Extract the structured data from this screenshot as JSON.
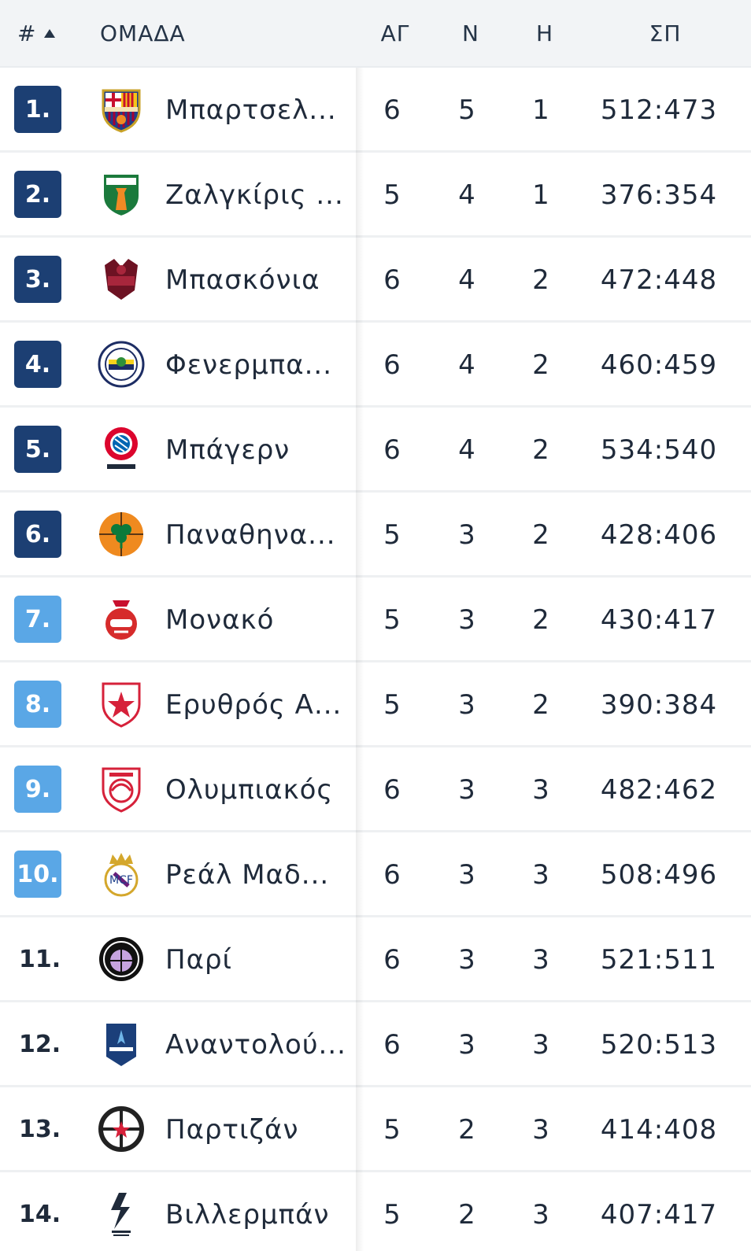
{
  "header": {
    "rank": "#",
    "team": "ΟΜΑΔΑ",
    "played": "ΑΓ",
    "won": "Ν",
    "lost": "Η",
    "points": "ΣΠ"
  },
  "colors": {
    "rank_dark": "#1c3f73",
    "rank_light": "#5aa7e6",
    "header_bg": "#f2f4f6"
  },
  "rows": [
    {
      "rank": "1.",
      "style": "dark",
      "logo": "barcelona-logo-icon",
      "team": "Μπαρτσελ...",
      "played": "6",
      "won": "5",
      "lost": "1",
      "points": "512:473"
    },
    {
      "rank": "2.",
      "style": "dark",
      "logo": "zalgiris-logo-icon",
      "team": "Ζαλγκίρις ...",
      "played": "5",
      "won": "4",
      "lost": "1",
      "points": "376:354"
    },
    {
      "rank": "3.",
      "style": "dark",
      "logo": "baskonia-logo-icon",
      "team": "Μπασκόνια",
      "played": "6",
      "won": "4",
      "lost": "2",
      "points": "472:448"
    },
    {
      "rank": "4.",
      "style": "dark",
      "logo": "fenerbahce-logo-icon",
      "team": "Φενερμπα...",
      "played": "6",
      "won": "4",
      "lost": "2",
      "points": "460:459"
    },
    {
      "rank": "5.",
      "style": "dark",
      "logo": "bayern-logo-icon",
      "team": "Μπάγερν",
      "played": "6",
      "won": "4",
      "lost": "2",
      "points": "534:540"
    },
    {
      "rank": "6.",
      "style": "dark",
      "logo": "panathinaikos-logo-icon",
      "team": "Παναθηνα...",
      "played": "5",
      "won": "3",
      "lost": "2",
      "points": "428:406"
    },
    {
      "rank": "7.",
      "style": "light",
      "logo": "monaco-logo-icon",
      "team": "Μονακό",
      "played": "5",
      "won": "3",
      "lost": "2",
      "points": "430:417"
    },
    {
      "rank": "8.",
      "style": "light",
      "logo": "crvena-zvezda-logo-icon",
      "team": "Ερυθρός Α...",
      "played": "5",
      "won": "3",
      "lost": "2",
      "points": "390:384"
    },
    {
      "rank": "9.",
      "style": "light",
      "logo": "olympiacos-logo-icon",
      "team": "Ολυμπιακός",
      "played": "6",
      "won": "3",
      "lost": "3",
      "points": "482:462"
    },
    {
      "rank": "10.",
      "style": "light",
      "logo": "real-madrid-logo-icon",
      "team": "Ρεάλ Μαδ...",
      "played": "6",
      "won": "3",
      "lost": "3",
      "points": "508:496"
    },
    {
      "rank": "11.",
      "style": "plain",
      "logo": "paris-logo-icon",
      "team": "Παρί",
      "played": "6",
      "won": "3",
      "lost": "3",
      "points": "521:511"
    },
    {
      "rank": "12.",
      "style": "plain",
      "logo": "anadolu-efes-logo-icon",
      "team": "Αναντολού...",
      "played": "6",
      "won": "3",
      "lost": "3",
      "points": "520:513"
    },
    {
      "rank": "13.",
      "style": "plain",
      "logo": "partizan-logo-icon",
      "team": "Παρτιζάν",
      "played": "5",
      "won": "2",
      "lost": "3",
      "points": "414:408"
    },
    {
      "rank": "14.",
      "style": "plain",
      "logo": "asvel-logo-icon",
      "team": "Βιλλερμπάν",
      "played": "5",
      "won": "2",
      "lost": "3",
      "points": "407:417"
    }
  ]
}
